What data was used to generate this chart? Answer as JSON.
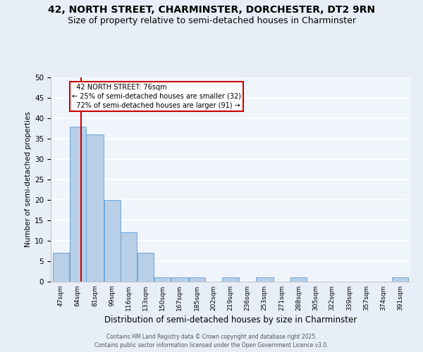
{
  "title": "42, NORTH STREET, CHARMINSTER, DORCHESTER, DT2 9RN",
  "subtitle": "Size of property relative to semi-detached houses in Charminster",
  "xlabel": "Distribution of semi-detached houses by size in Charminster",
  "ylabel": "Number of semi-detached properties",
  "footer_line1": "Contains HM Land Registry data © Crown copyright and database right 2025.",
  "footer_line2": "Contains public sector information licensed under the Open Government Licence v3.0.",
  "bin_labels": [
    "47sqm",
    "64sqm",
    "81sqm",
    "99sqm",
    "116sqm",
    "133sqm",
    "150sqm",
    "167sqm",
    "185sqm",
    "202sqm",
    "219sqm",
    "236sqm",
    "253sqm",
    "271sqm",
    "288sqm",
    "305sqm",
    "322sqm",
    "339sqm",
    "357sqm",
    "374sqm",
    "391sqm"
  ],
  "bin_edges": [
    47,
    64,
    81,
    99,
    116,
    133,
    150,
    167,
    185,
    202,
    219,
    236,
    253,
    271,
    288,
    305,
    322,
    339,
    357,
    374,
    391
  ],
  "bar_values": [
    7,
    38,
    36,
    20,
    12,
    7,
    1,
    1,
    1,
    0,
    1,
    0,
    1,
    0,
    1,
    0,
    0,
    0,
    0,
    0,
    1
  ],
  "bar_color": "#b8cfe8",
  "bar_edge_color": "#5b9bd5",
  "property_size": 76,
  "property_label": "42 NORTH STREET: 76sqm",
  "pct_smaller": 25,
  "count_smaller": 32,
  "pct_larger": 72,
  "count_larger": 91,
  "vline_color": "#cc0000",
  "annotation_box_color": "#cc0000",
  "ylim": [
    0,
    50
  ],
  "yticks": [
    0,
    5,
    10,
    15,
    20,
    25,
    30,
    35,
    40,
    45,
    50
  ],
  "bg_color": "#e8eef7",
  "plot_bg_color": "#f0f4fb",
  "grid_color": "#ffffff",
  "title_fontsize": 10,
  "subtitle_fontsize": 9
}
